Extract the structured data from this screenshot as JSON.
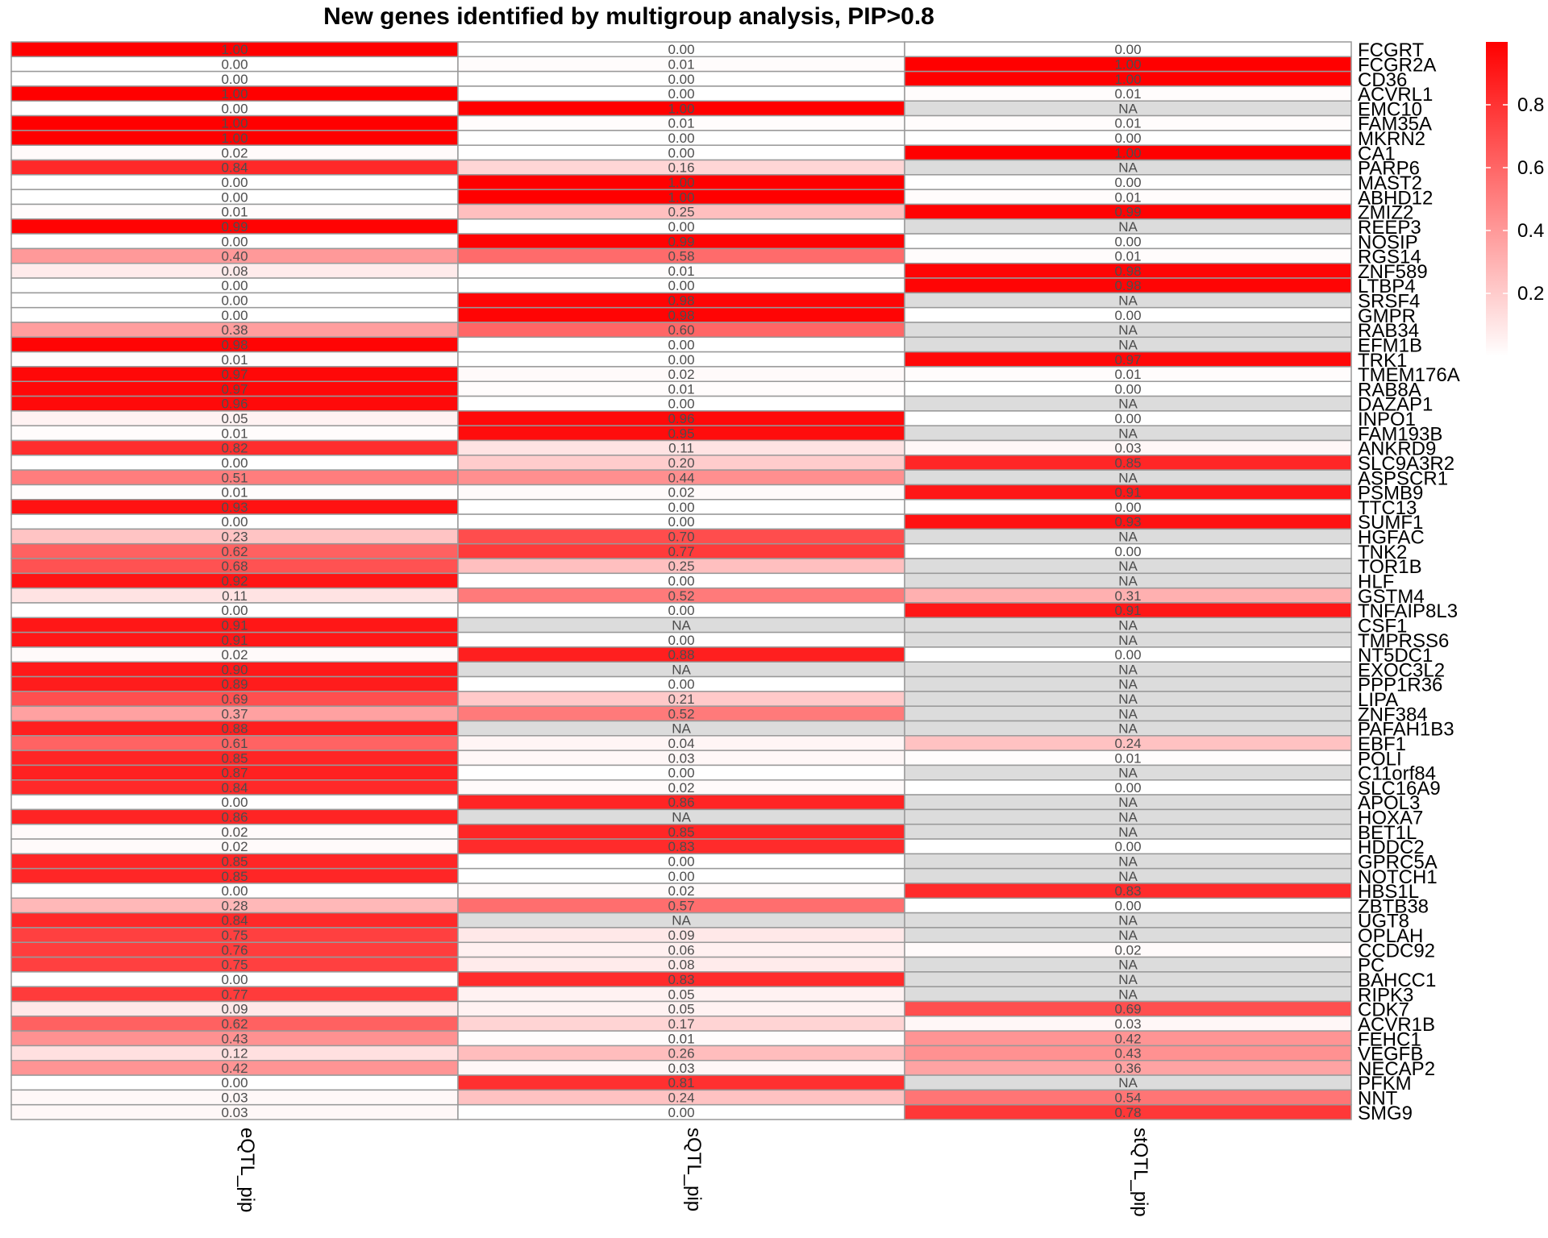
{
  "chart_data": {
    "type": "heatmap",
    "title": "New genes identified by multigroup analysis, PIP>0.8",
    "columns": [
      "eQTL_pip",
      "sQTL_pip",
      "stQTL_pip"
    ],
    "rows": [
      "FCGRT",
      "FCGR2A",
      "CD36",
      "ACVRL1",
      "EMC10",
      "FAM35A",
      "MKRN2",
      "CA1",
      "PARP6",
      "MAST2",
      "ABHD12",
      "ZMIZ2",
      "REEP3",
      "NOSIP",
      "RGS14",
      "ZNF589",
      "LTBP4",
      "SRSF4",
      "GMPR",
      "RAB34",
      "EFM1B",
      "TRK1",
      "TMEM176A",
      "RAB8A",
      "DAZAP1",
      "INPO1",
      "FAM193B",
      "ANKRD9",
      "SLC9A3R2",
      "ASPSCR1",
      "PSMB9",
      "TTC13",
      "SUMF1",
      "HGFAC",
      "TNK2",
      "TOR1B",
      "HLF",
      "GSTM4",
      "TNFAIP8L3",
      "CSF1",
      "TMPRSS6",
      "NT5DC1",
      "EXOC3L2",
      "PPP1R36",
      "LIPA",
      "ZNF384",
      "PAFAH1B3",
      "EBF1",
      "POLI",
      "C11orf84",
      "SLC16A9",
      "APOL3",
      "HOXA7",
      "BET1L",
      "HDDC2",
      "GPRC5A",
      "NOTCH1",
      "HBS1L",
      "ZBTB38",
      "UGT8",
      "OPLAH",
      "CCDC92",
      "PC",
      "BAHCC1",
      "RIPK3",
      "CDK7",
      "ACVR1B",
      "FEHC1",
      "VEGFB",
      "NECAP2",
      "PFKM",
      "NNT",
      "SMG9"
    ],
    "values": [
      [
        "1.00",
        "0.00",
        "0.00"
      ],
      [
        "0.00",
        "0.01",
        "1.00"
      ],
      [
        "0.00",
        "0.00",
        "1.00"
      ],
      [
        "1.00",
        "0.00",
        "0.01"
      ],
      [
        "0.00",
        "1.00",
        "NA"
      ],
      [
        "1.00",
        "0.01",
        "0.01"
      ],
      [
        "1.00",
        "0.00",
        "0.00"
      ],
      [
        "0.02",
        "0.00",
        "1.00"
      ],
      [
        "0.84",
        "0.16",
        "NA"
      ],
      [
        "0.00",
        "1.00",
        "0.00"
      ],
      [
        "0.00",
        "1.00",
        "0.01"
      ],
      [
        "0.01",
        "0.25",
        "0.99"
      ],
      [
        "0.99",
        "0.00",
        "NA"
      ],
      [
        "0.00",
        "0.99",
        "0.00"
      ],
      [
        "0.40",
        "0.58",
        "0.01"
      ],
      [
        "0.08",
        "0.01",
        "0.98"
      ],
      [
        "0.00",
        "0.00",
        "0.98"
      ],
      [
        "0.00",
        "0.98",
        "NA"
      ],
      [
        "0.00",
        "0.98",
        "0.00"
      ],
      [
        "0.38",
        "0.60",
        "NA"
      ],
      [
        "0.98",
        "0.00",
        "NA"
      ],
      [
        "0.01",
        "0.00",
        "0.97"
      ],
      [
        "0.97",
        "0.02",
        "0.01"
      ],
      [
        "0.97",
        "0.01",
        "0.00"
      ],
      [
        "0.96",
        "0.00",
        "NA"
      ],
      [
        "0.05",
        "0.96",
        "0.00"
      ],
      [
        "0.01",
        "0.95",
        "NA"
      ],
      [
        "0.82",
        "0.11",
        "0.03"
      ],
      [
        "0.00",
        "0.20",
        "0.85"
      ],
      [
        "0.51",
        "0.44",
        "NA"
      ],
      [
        "0.01",
        "0.02",
        "0.91"
      ],
      [
        "0.93",
        "0.00",
        "0.00"
      ],
      [
        "0.00",
        "0.00",
        "0.93"
      ],
      [
        "0.23",
        "0.70",
        "NA"
      ],
      [
        "0.62",
        "0.77",
        "0.00"
      ],
      [
        "0.68",
        "0.25",
        "NA"
      ],
      [
        "0.92",
        "0.00",
        "NA"
      ],
      [
        "0.11",
        "0.52",
        "0.31"
      ],
      [
        "0.00",
        "0.00",
        "0.91"
      ],
      [
        "0.91",
        "NA",
        "NA"
      ],
      [
        "0.91",
        "0.00",
        "NA"
      ],
      [
        "0.02",
        "0.88",
        "0.00"
      ],
      [
        "0.90",
        "NA",
        "NA"
      ],
      [
        "0.89",
        "0.00",
        "NA"
      ],
      [
        "0.69",
        "0.21",
        "NA"
      ],
      [
        "0.37",
        "0.52",
        "NA"
      ],
      [
        "0.88",
        "NA",
        "NA"
      ],
      [
        "0.61",
        "0.04",
        "0.24"
      ],
      [
        "0.85",
        "0.03",
        "0.01"
      ],
      [
        "0.87",
        "0.00",
        "NA"
      ],
      [
        "0.84",
        "0.02",
        "0.00"
      ],
      [
        "0.00",
        "0.86",
        "NA"
      ],
      [
        "0.86",
        "NA",
        "NA"
      ],
      [
        "0.02",
        "0.85",
        "NA"
      ],
      [
        "0.02",
        "0.83",
        "0.00"
      ],
      [
        "0.85",
        "0.00",
        "NA"
      ],
      [
        "0.85",
        "0.00",
        "NA"
      ],
      [
        "0.00",
        "0.02",
        "0.83"
      ],
      [
        "0.28",
        "0.57",
        "0.00"
      ],
      [
        "0.84",
        "NA",
        "NA"
      ],
      [
        "0.75",
        "0.09",
        "NA"
      ],
      [
        "0.76",
        "0.06",
        "0.02"
      ],
      [
        "0.75",
        "0.08",
        "NA"
      ],
      [
        "0.00",
        "0.83",
        "NA"
      ],
      [
        "0.77",
        "0.05",
        "NA"
      ],
      [
        "0.09",
        "0.05",
        "0.69"
      ],
      [
        "0.62",
        "0.17",
        "0.03"
      ],
      [
        "0.43",
        "0.01",
        "0.42"
      ],
      [
        "0.12",
        "0.26",
        "0.43"
      ],
      [
        "0.42",
        "0.03",
        "0.36"
      ],
      [
        "0.00",
        "0.81",
        "NA"
      ],
      [
        "0.03",
        "0.24",
        "0.54"
      ],
      [
        "0.03",
        "0.00",
        "0.78"
      ]
    ],
    "color_scale": {
      "low": "#ffffff",
      "high": "#ff0000",
      "na": "#dcdcdc",
      "border": "#999999",
      "domain": [
        0,
        1
      ]
    },
    "legend": {
      "ticks": [
        "0.2",
        "0.4",
        "0.6",
        "0.8"
      ],
      "placement": "right"
    }
  }
}
